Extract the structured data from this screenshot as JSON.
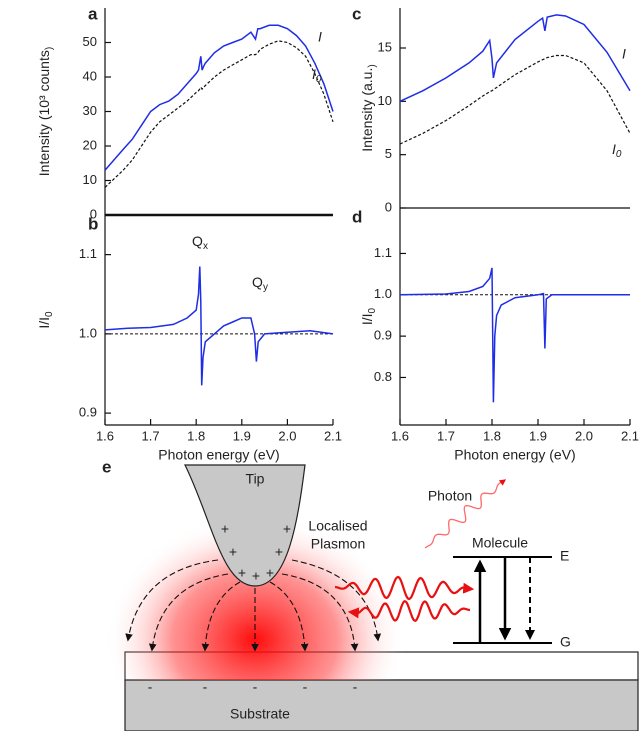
{
  "chart_data": [
    {
      "type": "line",
      "panel_label": "a",
      "ylabel": "Intensity (10³ counts)",
      "x": [
        1.6,
        1.62,
        1.64,
        1.66,
        1.68,
        1.7,
        1.72,
        1.74,
        1.76,
        1.78,
        1.8,
        1.805,
        1.81,
        1.813,
        1.816,
        1.82,
        1.84,
        1.86,
        1.88,
        1.9,
        1.92,
        1.93,
        1.935,
        1.94,
        1.96,
        1.98,
        2.0,
        2.02,
        2.04,
        2.06,
        2.08,
        2.1
      ],
      "series": [
        {
          "name": "I",
          "color": "#1f2de6",
          "dashed": false,
          "values": [
            13,
            16,
            19,
            22,
            26,
            30,
            32,
            33,
            35,
            38,
            41,
            42,
            46,
            42,
            43,
            44,
            47,
            49,
            50,
            51,
            53,
            51,
            54,
            54,
            55,
            55,
            54,
            52,
            49,
            44,
            38,
            30
          ]
        },
        {
          "name": "I0",
          "color": "#111111",
          "dashed": true,
          "values": [
            8,
            10.5,
            13,
            16,
            20,
            24,
            27,
            29,
            31,
            33,
            35.5,
            36,
            37,
            36.5,
            37,
            37.5,
            40,
            42,
            43.5,
            45,
            46.5,
            46.5,
            47,
            48,
            49.5,
            50.5,
            50,
            48.5,
            46,
            41,
            35,
            27
          ]
        }
      ],
      "xlim": [
        1.6,
        2.1
      ],
      "ylim": [
        0,
        60
      ],
      "yticks": [
        0,
        10,
        20,
        30,
        40,
        50
      ]
    },
    {
      "type": "line",
      "panel_label": "b",
      "ylabel": "I/I0",
      "xlabel": "Photon energy (eV)",
      "x": [
        1.6,
        1.65,
        1.7,
        1.75,
        1.78,
        1.8,
        1.805,
        1.808,
        1.81,
        1.812,
        1.815,
        1.82,
        1.84,
        1.86,
        1.88,
        1.9,
        1.92,
        1.928,
        1.932,
        1.936,
        1.95,
        2.0,
        2.05,
        2.1
      ],
      "series": [
        {
          "color": "#1f2de6",
          "dashed": false,
          "values": [
            1.005,
            1.007,
            1.008,
            1.012,
            1.02,
            1.03,
            1.05,
            1.085,
            1.04,
            0.935,
            0.97,
            0.99,
            1.0,
            1.01,
            1.015,
            1.02,
            1.02,
            1.0,
            0.965,
            0.99,
            1.0,
            1.002,
            1.004,
            1.0
          ]
        }
      ],
      "hline": 1.0,
      "annotations": [
        "Qx",
        "Qy"
      ],
      "xlim": [
        1.6,
        2.1
      ],
      "ylim": [
        0.885,
        1.15
      ],
      "xticks": [
        1.6,
        1.7,
        1.8,
        1.9,
        {
          "value": 2,
          "label": "2.0"
        },
        2.1
      ],
      "yticks": [
        0.9,
        {
          "value": 1,
          "label": "1.0"
        },
        1.1
      ]
    },
    {
      "type": "line",
      "panel_label": "c",
      "ylabel": "Intensity (a.u.)",
      "x": [
        1.6,
        1.65,
        1.7,
        1.75,
        1.78,
        1.795,
        1.8,
        1.803,
        1.81,
        1.85,
        1.9,
        1.91,
        1.915,
        1.92,
        1.94,
        1.96,
        2.0,
        2.05,
        2.1
      ],
      "series": [
        {
          "name": "I",
          "color": "#1f2de6",
          "dashed": false,
          "values": [
            10,
            11,
            12.2,
            13.6,
            14.7,
            15.7,
            14,
            12.2,
            13.6,
            15.8,
            17.5,
            17.8,
            16.6,
            17.9,
            18.1,
            18,
            17.2,
            14.6,
            11
          ]
        },
        {
          "name": "I0",
          "color": "#111111",
          "dashed": true,
          "values": [
            6,
            7,
            8.2,
            9.6,
            10.5,
            10.9,
            11,
            11.1,
            11.3,
            12.5,
            13.7,
            13.9,
            14,
            14.1,
            14.3,
            14.3,
            13.6,
            11,
            7
          ]
        }
      ],
      "xlim": [
        1.6,
        2.1
      ],
      "ylim": [
        0,
        18.75
      ],
      "yticks": [
        0,
        5,
        10,
        15
      ]
    },
    {
      "type": "line",
      "panel_label": "d",
      "ylabel": "I/I0",
      "xlabel": "Photon energy (eV)",
      "x": [
        1.6,
        1.7,
        1.75,
        1.78,
        1.795,
        1.8,
        1.803,
        1.806,
        1.81,
        1.82,
        1.85,
        1.9,
        1.912,
        1.915,
        1.918,
        1.93,
        2.0,
        2.1
      ],
      "series": [
        {
          "color": "#1f2de6",
          "dashed": false,
          "values": [
            1.0,
            1.002,
            1.008,
            1.02,
            1.04,
            1.065,
            0.74,
            0.9,
            0.95,
            0.975,
            0.993,
            1.0,
            1.003,
            0.87,
            0.99,
            1.0,
            1.0,
            1.0
          ]
        }
      ],
      "hline": 1.0,
      "xlim": [
        1.6,
        2.1
      ],
      "ylim": [
        0.685,
        1.21
      ],
      "xticks": [
        1.6,
        1.7,
        1.8,
        1.9,
        {
          "value": 2,
          "label": "2.0"
        },
        2.1
      ],
      "yticks": [
        0.8,
        0.9,
        {
          "value": 1,
          "label": "1.0"
        },
        1.1
      ]
    }
  ],
  "diagram": {
    "panel_label": "e",
    "tip": "Tip",
    "plasmon": [
      "Localised",
      "Plasmon"
    ],
    "photon": "Photon",
    "molecule": "Molecule",
    "upper_level": "E",
    "lower_level": "G",
    "substrate": "Substrate",
    "charges": [
      "+",
      "-"
    ]
  }
}
